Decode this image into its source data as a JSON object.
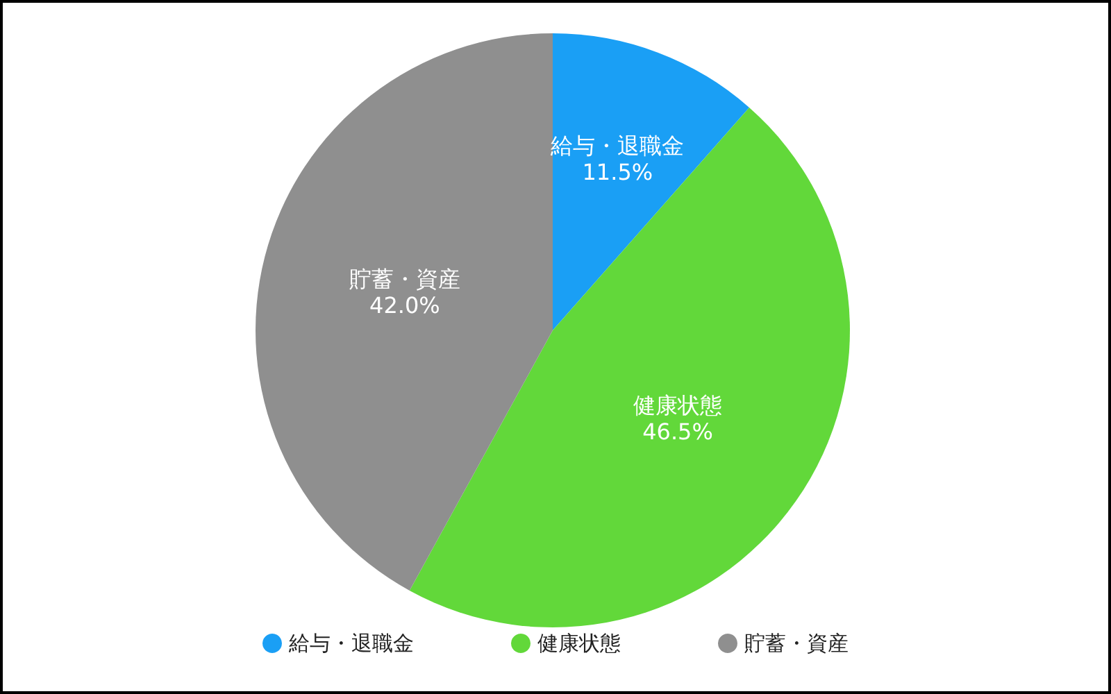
{
  "chart_data": {
    "type": "pie",
    "categories": [
      "給与・退職金",
      "健康状態",
      "貯蓄・資産"
    ],
    "values": [
      11.5,
      46.5,
      42.0
    ],
    "value_labels": [
      "11.5%",
      "46.5%",
      "42.0%"
    ],
    "colors": [
      "#1a9ff5",
      "#62d83a",
      "#8f8f8f"
    ],
    "legend": "bottom"
  }
}
